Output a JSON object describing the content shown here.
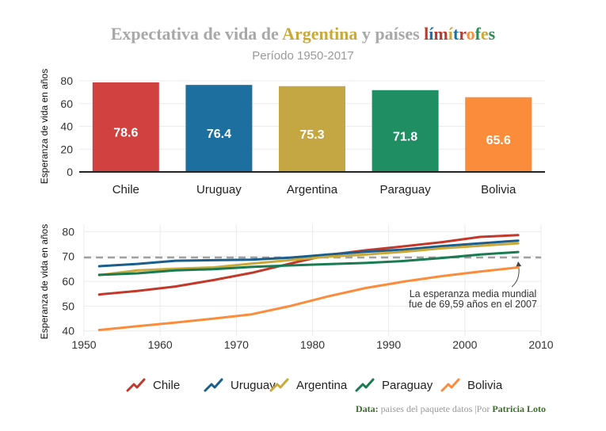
{
  "header": {
    "title_parts": [
      {
        "text": "Expectativa de vida de ",
        "color": "#a8a8a8"
      },
      {
        "text": "Argentina",
        "color": "#c9a93a"
      },
      {
        "text": " y países ",
        "color": "#a8a8a8"
      },
      {
        "text": "l",
        "color": "#c0392b"
      },
      {
        "text": "í",
        "color": "#1c6f9e"
      },
      {
        "text": "m",
        "color": "#c0392b"
      },
      {
        "text": "í",
        "color": "#c9a93a"
      },
      {
        "text": "t",
        "color": "#1c6f9e"
      },
      {
        "text": "r",
        "color": "#c0392b"
      },
      {
        "text": "o",
        "color": "#fb8c3c"
      },
      {
        "text": "f",
        "color": "#2e8b57"
      },
      {
        "text": "e",
        "color": "#c9a93a"
      },
      {
        "text": "s",
        "color": "#2e8b57"
      }
    ],
    "subtitle": "Período 1950-2017"
  },
  "chart_data": [
    {
      "type": "bar",
      "categories": [
        "Chile",
        "Uruguay",
        "Argentina",
        "Paraguay",
        "Bolivia"
      ],
      "values": [
        78.6,
        76.4,
        75.3,
        71.8,
        65.6
      ],
      "value_labels": [
        "78.6",
        "76.4",
        "75.3",
        "71.8",
        "65.6"
      ],
      "colors": [
        "#d0413f",
        "#1c6f9e",
        "#c4a642",
        "#1f8e62",
        "#fb8c3c"
      ],
      "ylabel": "Esperanza de vida en años",
      "ylim": [
        0,
        80
      ],
      "yticks": [
        0,
        20,
        40,
        60,
        80
      ],
      "grid": true
    },
    {
      "type": "line",
      "ylabel": "Esperanza de vida en años",
      "xlim": [
        1950,
        2010
      ],
      "xticks": [
        1950,
        1960,
        1970,
        1980,
        1990,
        2000,
        2010
      ],
      "ylim": [
        38,
        83
      ],
      "yticks": [
        40,
        50,
        60,
        70,
        80
      ],
      "grid": true,
      "legend_position": "bottom",
      "reference_line": {
        "value": 69.59,
        "annotation_lines": [
          "La esperanza media mundial",
          "fue de 69,59 años en el 2007"
        ]
      },
      "series": [
        {
          "name": "Chile",
          "color": "#c0392b",
          "x": [
            1952,
            1957,
            1962,
            1967,
            1972,
            1977,
            1982,
            1987,
            1992,
            1997,
            2002,
            2007
          ],
          "y": [
            54.7,
            56.1,
            57.9,
            60.5,
            63.4,
            67.1,
            70.6,
            72.5,
            74.1,
            75.8,
            77.9,
            78.6
          ]
        },
        {
          "name": "Uruguay",
          "color": "#1a5e8c",
          "x": [
            1952,
            1957,
            1962,
            1967,
            1972,
            1977,
            1982,
            1987,
            1992,
            1997,
            2002,
            2007
          ],
          "y": [
            66.1,
            67.0,
            68.3,
            68.5,
            68.7,
            69.5,
            70.8,
            71.9,
            72.8,
            74.2,
            75.3,
            76.4
          ]
        },
        {
          "name": "Argentina",
          "color": "#c9a93a",
          "x": [
            1952,
            1957,
            1962,
            1967,
            1972,
            1977,
            1982,
            1987,
            1992,
            1997,
            2002,
            2007
          ],
          "y": [
            62.5,
            64.4,
            65.1,
            65.6,
            67.1,
            68.5,
            69.9,
            70.8,
            71.9,
            73.3,
            74.3,
            75.3
          ]
        },
        {
          "name": "Paraguay",
          "color": "#1a7a52",
          "x": [
            1952,
            1957,
            1962,
            1967,
            1972,
            1977,
            1982,
            1987,
            1992,
            1997,
            2002,
            2007
          ],
          "y": [
            62.6,
            63.2,
            64.4,
            64.9,
            65.8,
            66.4,
            66.9,
            67.4,
            68.2,
            69.4,
            70.8,
            71.8
          ]
        },
        {
          "name": "Bolivia",
          "color": "#fb8c3c",
          "x": [
            1952,
            1957,
            1962,
            1967,
            1972,
            1977,
            1982,
            1987,
            1992,
            1997,
            2002,
            2007
          ],
          "y": [
            40.4,
            41.9,
            43.4,
            45.0,
            46.7,
            50.0,
            53.9,
            57.3,
            59.9,
            62.1,
            63.9,
            65.6
          ]
        }
      ]
    }
  ],
  "caption": {
    "prefix": "Data:",
    "source": "paises del paquete datos",
    "separator": "|Por",
    "author": "Patricia Loto"
  }
}
